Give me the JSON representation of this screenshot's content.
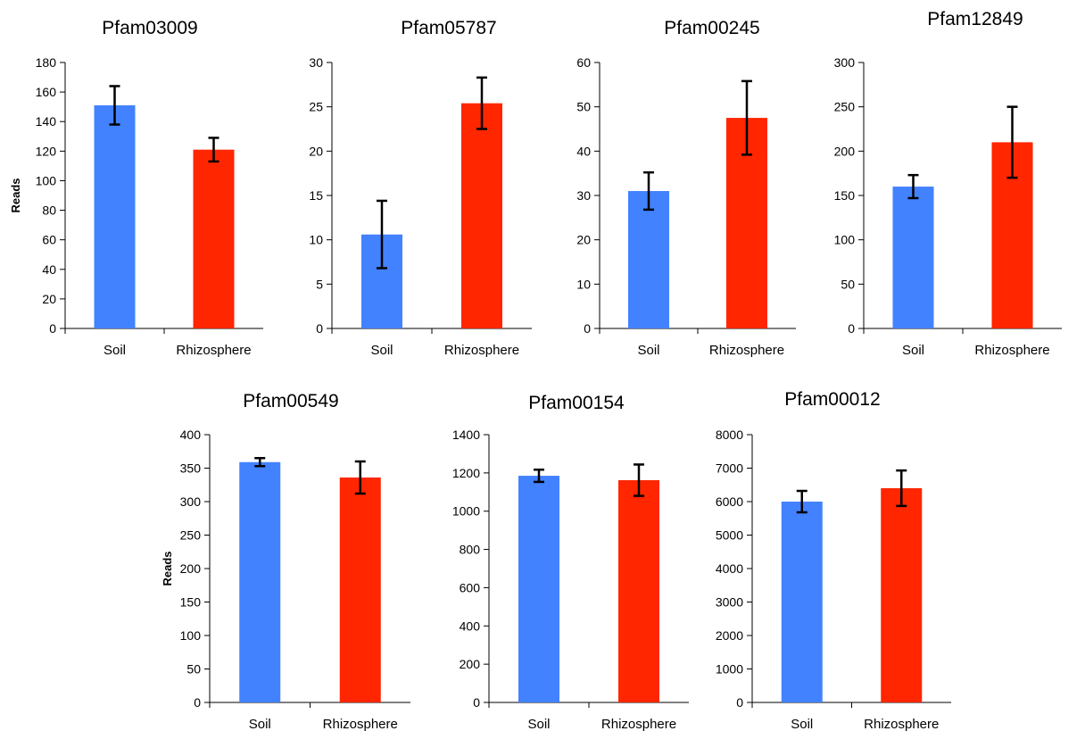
{
  "colors": {
    "soil": "#4282FF",
    "rhizosphere": "#FF2600",
    "axis": "#000000"
  },
  "chart_data": [
    {
      "type": "bar",
      "title": "Pfam03009",
      "ylabel": "Reads",
      "categories": [
        "Soil",
        "Rhizosphere"
      ],
      "values": [
        151,
        121
      ],
      "error": [
        13,
        8
      ],
      "ylim": [
        0,
        180
      ],
      "yticks": [
        "0",
        "20",
        "40",
        "60",
        "80",
        "100",
        "120",
        "140",
        "160",
        "180"
      ],
      "grid": false
    },
    {
      "type": "bar",
      "title": "Pfam05787",
      "ylabel": "",
      "categories": [
        "Soil",
        "Rhizosphere"
      ],
      "values": [
        10.6,
        25.4
      ],
      "error": [
        3.8,
        2.9
      ],
      "ylim": [
        0,
        30
      ],
      "yticks": [
        "0",
        "5",
        "10",
        "15",
        "20",
        "25",
        "30"
      ],
      "grid": false
    },
    {
      "type": "bar",
      "title": "Pfam00245",
      "ylabel": "",
      "categories": [
        "Soil",
        "Rhizosphere"
      ],
      "values": [
        31,
        47.5
      ],
      "error": [
        4.2,
        8.3
      ],
      "ylim": [
        0,
        60
      ],
      "yticks": [
        "0",
        "10",
        "20",
        "30",
        "40",
        "50",
        "60"
      ],
      "grid": false
    },
    {
      "type": "bar",
      "title": "Pfam12849",
      "ylabel": "",
      "categories": [
        "Soil",
        "Rhizosphere"
      ],
      "values": [
        160,
        210
      ],
      "error": [
        13,
        40
      ],
      "ylim": [
        0,
        300
      ],
      "yticks": [
        "0",
        "50",
        "100",
        "150",
        "200",
        "250",
        "300"
      ],
      "grid": false
    },
    {
      "type": "bar",
      "title": "Pfam00549",
      "ylabel": "Reads",
      "categories": [
        "Soil",
        "Rhizosphere"
      ],
      "values": [
        359,
        336
      ],
      "error": [
        6,
        24
      ],
      "ylim": [
        0,
        400
      ],
      "yticks": [
        "0",
        "50",
        "100",
        "150",
        "200",
        "250",
        "300",
        "350",
        "400"
      ],
      "grid": false
    },
    {
      "type": "bar",
      "title": "Pfam00154",
      "ylabel": "",
      "categories": [
        "Soil",
        "Rhizosphere"
      ],
      "values": [
        1185,
        1162
      ],
      "error": [
        32,
        82
      ],
      "ylim": [
        0,
        1400
      ],
      "yticks": [
        "0",
        "200",
        "400",
        "600",
        "800",
        "1000",
        "1200",
        "1400"
      ],
      "grid": false
    },
    {
      "type": "bar",
      "title": "Pfam00012",
      "ylabel": "",
      "categories": [
        "Soil",
        "Rhizosphere"
      ],
      "values": [
        6000,
        6400
      ],
      "error": [
        320,
        530
      ],
      "ylim": [
        0,
        8000
      ],
      "yticks": [
        "0",
        "1000",
        "2000",
        "3000",
        "4000",
        "5000",
        "6000",
        "7000",
        "8000"
      ],
      "grid": false
    }
  ]
}
